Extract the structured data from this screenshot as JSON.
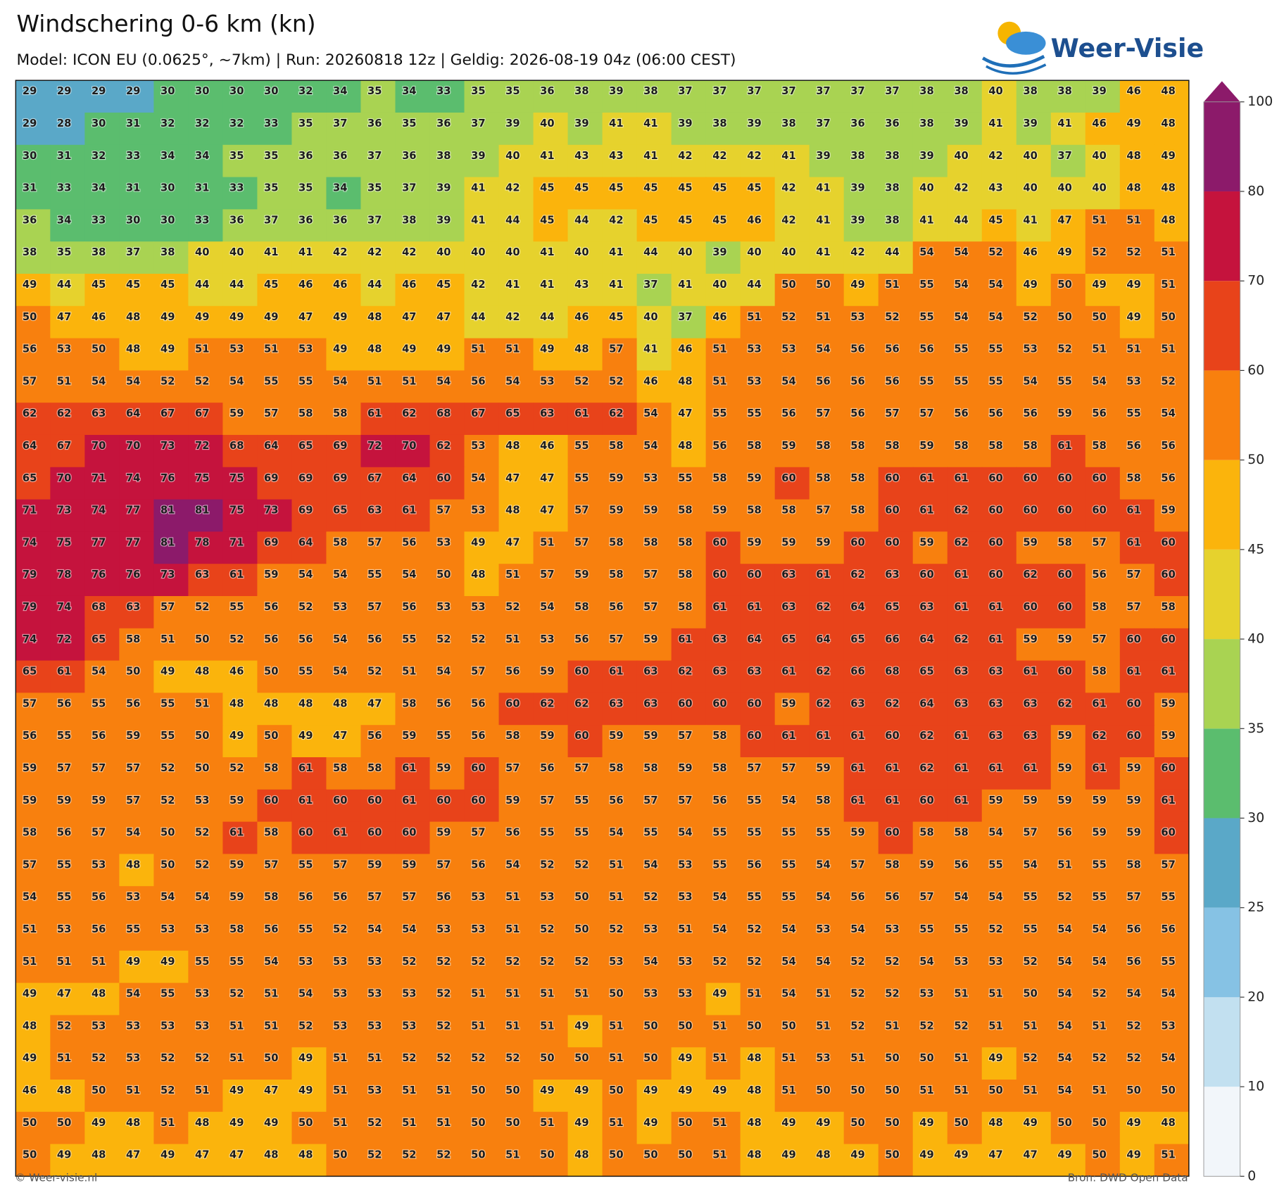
{
  "header": {
    "title": "Windschering 0-6 km (kn)",
    "subtitle": "Model: ICON EU (0.0625°, ~7km)  |  Run: 20260818 12z  |  Geldig: 2026-08-19 04z (06:00 CEST)"
  },
  "logo": {
    "text": "Weer-Visie"
  },
  "grid": {
    "rows": [
      [
        29,
        29,
        29,
        29,
        30,
        30,
        30,
        30,
        32,
        34,
        35,
        34,
        33,
        35,
        35,
        36,
        38,
        39,
        38,
        37,
        37,
        37,
        37,
        37,
        37,
        37,
        38,
        38,
        40,
        38,
        38,
        39,
        46,
        48
      ],
      [
        29,
        28,
        30,
        31,
        32,
        32,
        32,
        33,
        35,
        37,
        36,
        35,
        36,
        37,
        39,
        40,
        39,
        41,
        41,
        39,
        38,
        39,
        38,
        37,
        36,
        36,
        38,
        39,
        41,
        39,
        41,
        46,
        49,
        48
      ],
      [
        30,
        31,
        32,
        33,
        34,
        34,
        35,
        35,
        36,
        36,
        37,
        36,
        38,
        39,
        40,
        41,
        43,
        43,
        41,
        42,
        42,
        42,
        41,
        39,
        38,
        38,
        39,
        40,
        42,
        40,
        37,
        40,
        48,
        49
      ],
      [
        31,
        33,
        34,
        31,
        30,
        31,
        33,
        35,
        35,
        34,
        35,
        37,
        39,
        41,
        42,
        45,
        45,
        45,
        45,
        45,
        45,
        45,
        42,
        41,
        39,
        38,
        40,
        42,
        43,
        40,
        40,
        40,
        48,
        48
      ],
      [
        36,
        34,
        33,
        30,
        30,
        33,
        36,
        37,
        36,
        36,
        37,
        38,
        39,
        41,
        44,
        45,
        44,
        42,
        45,
        45,
        45,
        46,
        42,
        41,
        39,
        38,
        41,
        44,
        45,
        41,
        47,
        51,
        51,
        48
      ],
      [
        38,
        35,
        38,
        37,
        38,
        40,
        40,
        41,
        41,
        42,
        42,
        42,
        40,
        40,
        40,
        41,
        40,
        41,
        44,
        40,
        39,
        40,
        40,
        41,
        42,
        44,
        54,
        54,
        52,
        46,
        49,
        52,
        52,
        51
      ],
      [
        49,
        44,
        45,
        45,
        45,
        44,
        44,
        45,
        46,
        46,
        44,
        46,
        45,
        42,
        41,
        41,
        43,
        41,
        37,
        41,
        40,
        44,
        50,
        50,
        49,
        51,
        55,
        54,
        54,
        49,
        50,
        49,
        49,
        51
      ],
      [
        50,
        47,
        46,
        48,
        49,
        49,
        49,
        49,
        47,
        49,
        48,
        47,
        47,
        44,
        42,
        44,
        46,
        45,
        40,
        37,
        46,
        51,
        52,
        51,
        53,
        52,
        55,
        54,
        54,
        52,
        50,
        50,
        49,
        50
      ],
      [
        56,
        53,
        50,
        48,
        49,
        51,
        53,
        51,
        53,
        49,
        48,
        49,
        49,
        51,
        51,
        49,
        48,
        57,
        41,
        46,
        51,
        53,
        53,
        54,
        56,
        56,
        56,
        55,
        55,
        53,
        52,
        51,
        51,
        51
      ],
      [
        57,
        51,
        54,
        54,
        52,
        52,
        54,
        55,
        55,
        54,
        51,
        51,
        54,
        56,
        54,
        53,
        52,
        52,
        46,
        48,
        51,
        53,
        54,
        56,
        56,
        56,
        55,
        55,
        55,
        54,
        55,
        54,
        53,
        52
      ],
      [
        62,
        62,
        63,
        64,
        67,
        67,
        59,
        57,
        58,
        58,
        61,
        62,
        68,
        67,
        65,
        63,
        61,
        62,
        54,
        47,
        55,
        55,
        56,
        57,
        56,
        57,
        57,
        56,
        56,
        56,
        59,
        56,
        55,
        54
      ],
      [
        64,
        67,
        70,
        70,
        73,
        72,
        68,
        64,
        65,
        69,
        72,
        70,
        62,
        53,
        48,
        46,
        55,
        58,
        54,
        48,
        56,
        58,
        59,
        58,
        58,
        58,
        59,
        58,
        58,
        58,
        61,
        58,
        56,
        56
      ],
      [
        65,
        70,
        71,
        74,
        76,
        75,
        75,
        69,
        69,
        69,
        67,
        64,
        60,
        54,
        47,
        47,
        55,
        59,
        53,
        55,
        58,
        59,
        60,
        58,
        58,
        60,
        61,
        61,
        60,
        60,
        60,
        60,
        58,
        56
      ],
      [
        71,
        73,
        74,
        77,
        81,
        81,
        75,
        73,
        69,
        65,
        63,
        61,
        57,
        53,
        48,
        47,
        57,
        59,
        59,
        58,
        59,
        58,
        58,
        57,
        58,
        60,
        61,
        62,
        60,
        60,
        60,
        60,
        61,
        59
      ],
      [
        74,
        75,
        77,
        77,
        81,
        78,
        71,
        69,
        64,
        58,
        57,
        56,
        53,
        49,
        47,
        51,
        57,
        58,
        58,
        58,
        60,
        59,
        59,
        59,
        60,
        60,
        59,
        62,
        60,
        59,
        58,
        57,
        61,
        60
      ],
      [
        79,
        78,
        76,
        76,
        73,
        63,
        61,
        59,
        54,
        54,
        55,
        54,
        50,
        48,
        51,
        57,
        59,
        58,
        57,
        58,
        60,
        60,
        63,
        61,
        62,
        63,
        60,
        61,
        60,
        62,
        60,
        56,
        57,
        60
      ],
      [
        79,
        74,
        68,
        63,
        57,
        52,
        55,
        56,
        52,
        53,
        57,
        56,
        53,
        53,
        52,
        54,
        58,
        56,
        57,
        58,
        61,
        61,
        63,
        62,
        64,
        65,
        63,
        61,
        61,
        60,
        60,
        58,
        57,
        58
      ],
      [
        74,
        72,
        65,
        58,
        51,
        50,
        52,
        56,
        56,
        54,
        56,
        55,
        52,
        52,
        51,
        53,
        56,
        57,
        59,
        61,
        63,
        64,
        65,
        64,
        65,
        66,
        64,
        62,
        61,
        59,
        59,
        57,
        60,
        60
      ],
      [
        65,
        61,
        54,
        50,
        49,
        48,
        46,
        50,
        55,
        54,
        52,
        51,
        54,
        57,
        56,
        59,
        60,
        61,
        63,
        62,
        63,
        63,
        61,
        62,
        66,
        68,
        65,
        63,
        63,
        61,
        60,
        58,
        61,
        61
      ],
      [
        57,
        56,
        55,
        56,
        55,
        51,
        48,
        48,
        48,
        48,
        47,
        58,
        56,
        56,
        60,
        62,
        62,
        63,
        63,
        60,
        60,
        60,
        59,
        62,
        63,
        62,
        64,
        63,
        63,
        63,
        62,
        61,
        60,
        59
      ],
      [
        56,
        55,
        56,
        59,
        55,
        50,
        49,
        50,
        49,
        47,
        56,
        59,
        55,
        56,
        58,
        59,
        60,
        59,
        59,
        57,
        58,
        60,
        61,
        61,
        61,
        60,
        62,
        61,
        63,
        63,
        59,
        62,
        60,
        59
      ],
      [
        59,
        57,
        57,
        57,
        52,
        50,
        52,
        58,
        61,
        58,
        58,
        61,
        59,
        60,
        57,
        56,
        57,
        58,
        58,
        59,
        58,
        57,
        57,
        59,
        61,
        61,
        62,
        61,
        61,
        61,
        59,
        61,
        59,
        60
      ],
      [
        59,
        59,
        59,
        57,
        52,
        53,
        59,
        60,
        61,
        60,
        60,
        61,
        60,
        60,
        59,
        57,
        55,
        56,
        57,
        57,
        56,
        55,
        54,
        58,
        61,
        61,
        60,
        61,
        59,
        59,
        59,
        59,
        59,
        61
      ],
      [
        58,
        56,
        57,
        54,
        50,
        52,
        61,
        58,
        60,
        61,
        60,
        60,
        59,
        57,
        56,
        55,
        55,
        54,
        55,
        54,
        55,
        55,
        55,
        55,
        59,
        60,
        58,
        58,
        54,
        57,
        56,
        59,
        59,
        60
      ],
      [
        57,
        55,
        53,
        48,
        50,
        52,
        59,
        57,
        55,
        57,
        59,
        59,
        57,
        56,
        54,
        52,
        52,
        51,
        54,
        53,
        55,
        56,
        55,
        54,
        57,
        58,
        59,
        56,
        55,
        54,
        51,
        55,
        58,
        57
      ],
      [
        54,
        55,
        56,
        53,
        54,
        54,
        59,
        58,
        56,
        56,
        57,
        57,
        56,
        53,
        51,
        53,
        50,
        51,
        52,
        53,
        54,
        55,
        55,
        54,
        56,
        56,
        57,
        54,
        54,
        55,
        52,
        55,
        57,
        55
      ],
      [
        51,
        53,
        56,
        55,
        53,
        53,
        58,
        56,
        55,
        52,
        54,
        54,
        53,
        53,
        51,
        52,
        50,
        52,
        53,
        51,
        54,
        52,
        54,
        53,
        54,
        53,
        55,
        55,
        52,
        55,
        54,
        54,
        56,
        56
      ],
      [
        51,
        51,
        51,
        49,
        49,
        55,
        55,
        54,
        53,
        53,
        53,
        52,
        52,
        52,
        52,
        52,
        52,
        53,
        54,
        53,
        52,
        52,
        54,
        54,
        52,
        52,
        54,
        53,
        53,
        52,
        54,
        54,
        56,
        55
      ],
      [
        49,
        47,
        48,
        54,
        55,
        53,
        52,
        51,
        54,
        53,
        53,
        53,
        52,
        51,
        51,
        51,
        51,
        50,
        53,
        53,
        49,
        51,
        54,
        51,
        52,
        52,
        53,
        51,
        51,
        50,
        54,
        52,
        54,
        54
      ],
      [
        48,
        52,
        53,
        53,
        53,
        53,
        51,
        51,
        52,
        53,
        53,
        53,
        52,
        51,
        51,
        51,
        49,
        51,
        50,
        50,
        51,
        50,
        50,
        51,
        52,
        51,
        52,
        52,
        51,
        51,
        54,
        51,
        52,
        53
      ],
      [
        49,
        51,
        52,
        53,
        52,
        52,
        51,
        50,
        49,
        51,
        51,
        52,
        52,
        52,
        52,
        50,
        50,
        51,
        50,
        49,
        51,
        48,
        51,
        53,
        51,
        50,
        50,
        51,
        49,
        52,
        54,
        52,
        52,
        54
      ],
      [
        46,
        48,
        50,
        51,
        52,
        51,
        49,
        47,
        49,
        51,
        53,
        51,
        51,
        50,
        50,
        49,
        49,
        50,
        49,
        49,
        49,
        48,
        51,
        50,
        50,
        50,
        51,
        51,
        50,
        51,
        54,
        51,
        50,
        50
      ],
      [
        50,
        50,
        49,
        48,
        51,
        48,
        49,
        49,
        50,
        51,
        52,
        51,
        51,
        50,
        50,
        51,
        49,
        51,
        49,
        50,
        51,
        48,
        49,
        49,
        50,
        50,
        49,
        50,
        48,
        49,
        50,
        50,
        49,
        48
      ],
      [
        50,
        49,
        48,
        47,
        49,
        47,
        47,
        48,
        48,
        50,
        52,
        52,
        52,
        50,
        51,
        50,
        48,
        50,
        50,
        50,
        51,
        48,
        49,
        48,
        49,
        50,
        49,
        49,
        47,
        47,
        49,
        50,
        49,
        51
      ]
    ]
  },
  "colorbar": {
    "levels": [
      0,
      10,
      20,
      25,
      30,
      35,
      40,
      45,
      50,
      60,
      70,
      80,
      100
    ],
    "colors": [
      "#f2f6fa",
      "#c2e0f0",
      "#86c2e4",
      "#5aa8c8",
      "#5bbd6e",
      "#a9d352",
      "#e6d22d",
      "#fbb40c",
      "#f8800e",
      "#e8431a",
      "#c5133d",
      "#8c1a6a"
    ]
  },
  "footer": {
    "left": "© Weer-visie.nl",
    "right": "Bron: DWD Open Data"
  }
}
